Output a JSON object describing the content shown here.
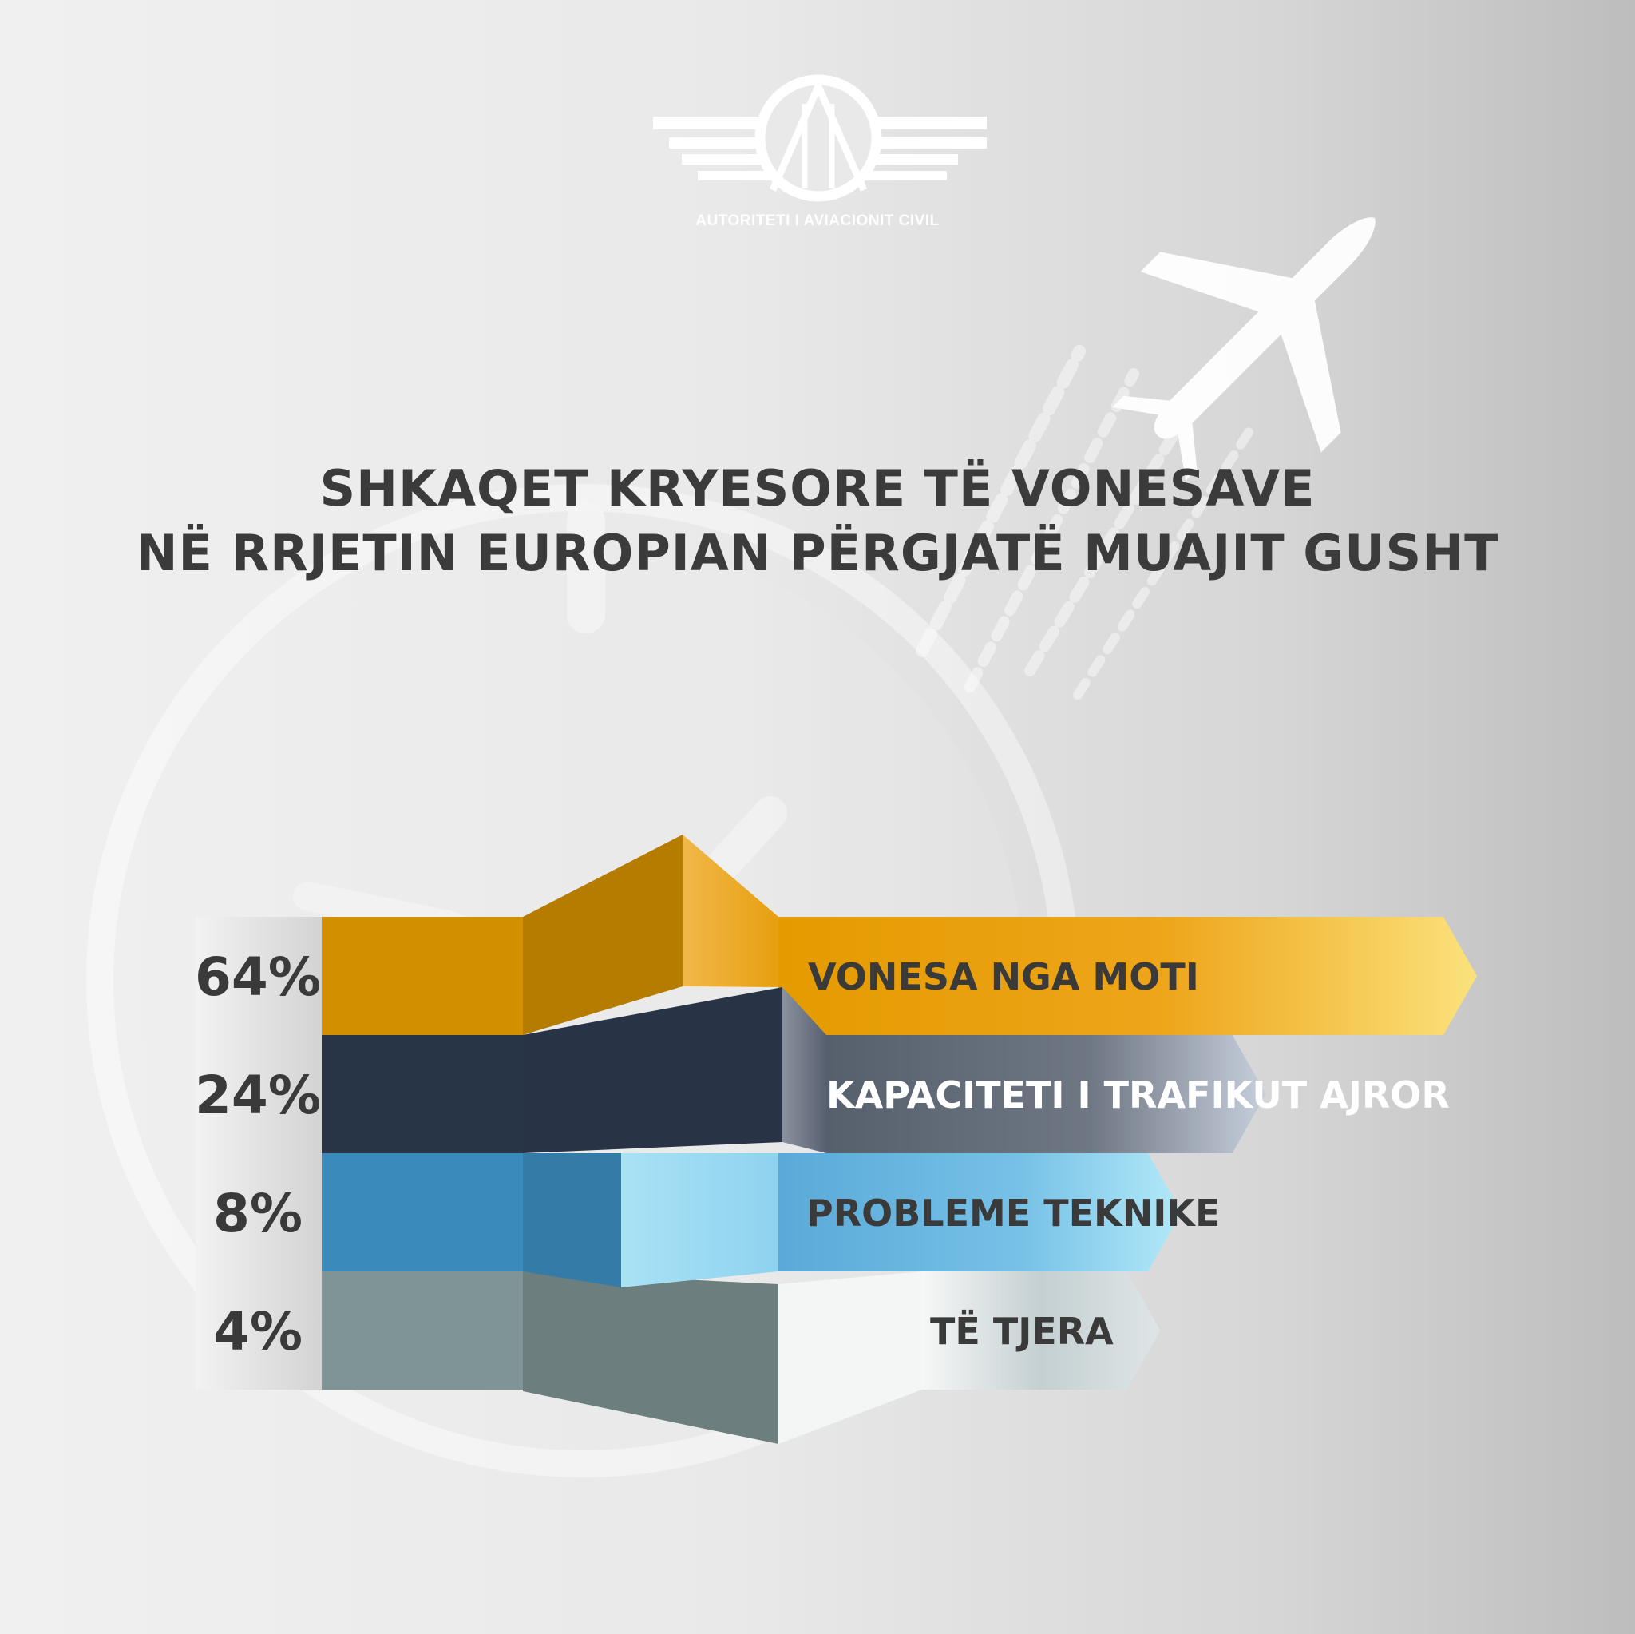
{
  "brand": {
    "name": "AUTORITETI I AVIACIONIT CIVIL"
  },
  "title": {
    "line1": "SHKAQET KRYESORE TË VONESAVE",
    "line2": "NË RRJETIN EUROPIAN PËRGJATË MUAJIT GUSHT"
  },
  "chart_data": {
    "type": "bar",
    "title": "SHKAQET KRYESORE TË VONESAVE NË RRJETIN EUROPIAN PËRGJATË MUAJIT GUSHT",
    "categories": [
      "VONESA NGA MOTI",
      "KAPACITETI I TRAFIKUT AJROR",
      "PROBLEME TEKNIKE",
      "TË TJERA"
    ],
    "values": [
      64,
      24,
      8,
      4
    ],
    "unit": "%",
    "value_labels": [
      "64%",
      "24%",
      "8%",
      "4%"
    ],
    "colors": [
      "#e49b00",
      "#2c3a4d",
      "#3f97cc",
      "#8aa1a2"
    ]
  }
}
